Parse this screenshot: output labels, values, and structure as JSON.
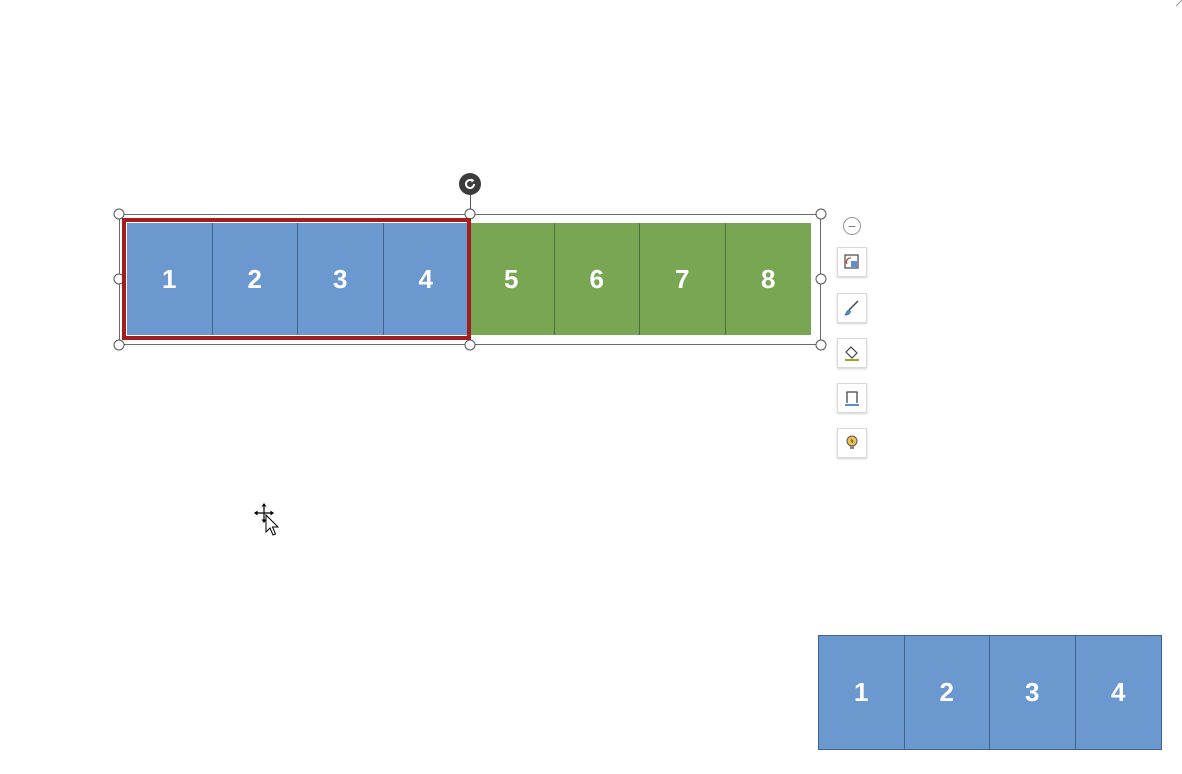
{
  "top_row": {
    "tiles": [
      {
        "label": "1",
        "color": "#6a98cf"
      },
      {
        "label": "2",
        "color": "#6a98cf"
      },
      {
        "label": "3",
        "color": "#6a98cf"
      },
      {
        "label": "4",
        "color": "#6a98cf"
      },
      {
        "label": "5",
        "color": "#78a652"
      },
      {
        "label": "6",
        "color": "#78a652"
      },
      {
        "label": "7",
        "color": "#78a652"
      },
      {
        "label": "8",
        "color": "#78a652"
      }
    ],
    "selection_outline_color": "#a21d1d"
  },
  "bottom_row": {
    "tiles": [
      {
        "label": "1",
        "color": "#6a98cf"
      },
      {
        "label": "2",
        "color": "#6a98cf"
      },
      {
        "label": "3",
        "color": "#6a98cf"
      },
      {
        "label": "4",
        "color": "#6a98cf"
      }
    ]
  },
  "side_toolbar": {
    "collapse_symbol": "−",
    "buttons": [
      {
        "icon": "layout-options-icon"
      },
      {
        "icon": "style-brush-icon"
      },
      {
        "icon": "fill-bucket-icon"
      },
      {
        "icon": "outline-icon"
      },
      {
        "icon": "design-ideas-bulb-icon"
      }
    ]
  }
}
